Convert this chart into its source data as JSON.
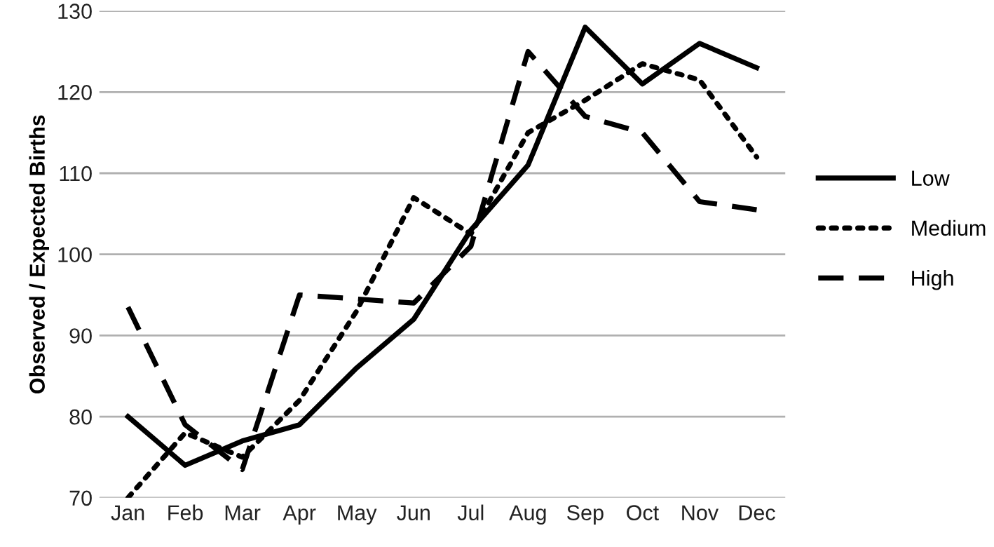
{
  "chart_data": {
    "type": "line",
    "ylabel": "Observed / Expected Births",
    "categories": [
      "Jan",
      "Feb",
      "Mar",
      "Apr",
      "May",
      "Jun",
      "Jul",
      "Aug",
      "Sep",
      "Oct",
      "Nov",
      "Dec"
    ],
    "series": [
      {
        "name": "Low",
        "color": "#000000",
        "line_style": "solid",
        "values": [
          80,
          74,
          77,
          79,
          86,
          92,
          103,
          111,
          128,
          121,
          126,
          123
        ]
      },
      {
        "name": "Medium",
        "color": "#000000",
        "line_style": "dotted",
        "values": [
          70,
          78,
          75,
          82,
          93,
          107,
          102.5,
          115,
          119,
          123.5,
          121.5,
          112
        ]
      },
      {
        "name": "High",
        "color": "#000000",
        "line_style": "dashed",
        "values": [
          93.5,
          79,
          73.5,
          95,
          94.5,
          94,
          101,
          125,
          117,
          115,
          106.5,
          105.5
        ]
      }
    ],
    "ylim": [
      70,
      130
    ],
    "yticks": [
      70,
      80,
      90,
      100,
      110,
      120,
      130
    ],
    "grid": "y",
    "legend": "right",
    "marker": "none"
  }
}
